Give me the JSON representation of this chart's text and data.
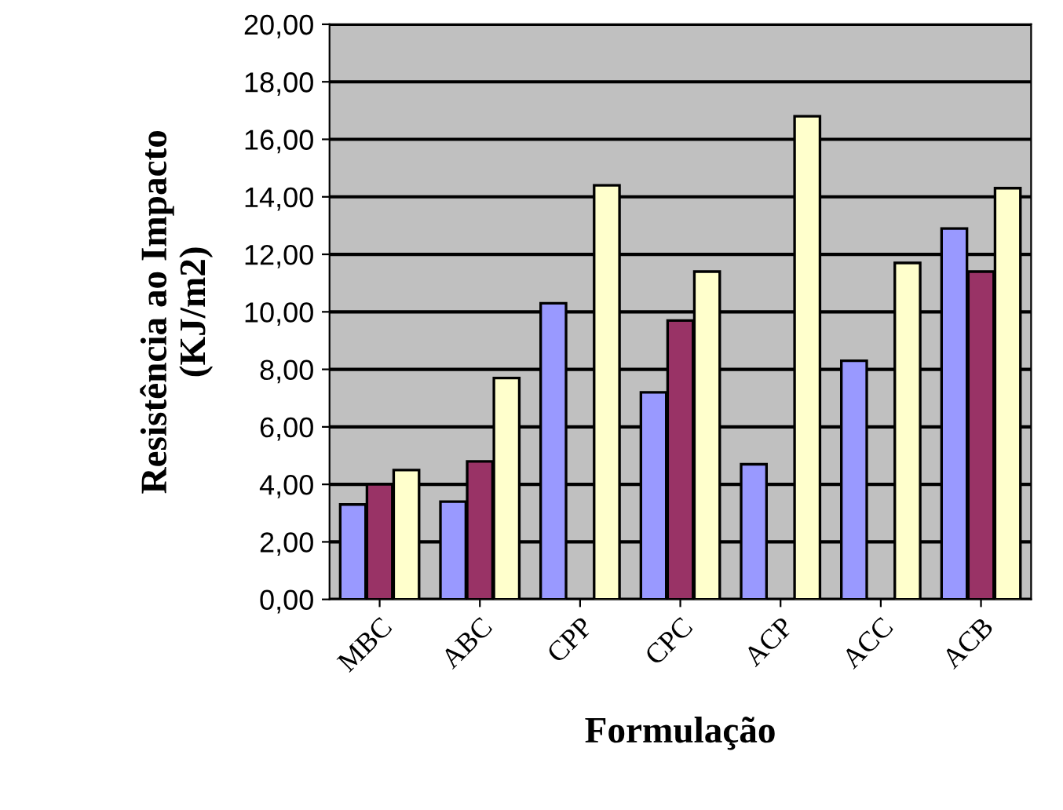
{
  "chart_data": {
    "type": "bar",
    "xlabel": "Formulação",
    "ylabel": "Resistência ao Impacto\n(KJ/m2)",
    "categories": [
      "MBC",
      "ABC",
      "CPP",
      "CPC",
      "ACP",
      "ACC",
      "ACB"
    ],
    "series": [
      {
        "color": "#9999ff",
        "values": [
          3.3,
          3.4,
          10.3,
          7.2,
          4.7,
          8.3,
          12.9
        ]
      },
      {
        "color": "#993366",
        "values": [
          4.0,
          4.8,
          null,
          9.7,
          null,
          null,
          11.4
        ]
      },
      {
        "color": "#ffffcc",
        "values": [
          4.5,
          7.7,
          14.4,
          11.4,
          16.8,
          11.7,
          14.3
        ]
      }
    ],
    "ylim": [
      0,
      20
    ],
    "yticks": [
      {
        "value": 0,
        "label": "0,00"
      },
      {
        "value": 2,
        "label": "2,00"
      },
      {
        "value": 4,
        "label": "4,00"
      },
      {
        "value": 6,
        "label": "6,00"
      },
      {
        "value": 8,
        "label": "8,00"
      },
      {
        "value": 10,
        "label": "10,00"
      },
      {
        "value": 12,
        "label": "12,00"
      },
      {
        "value": 14,
        "label": "14,00"
      },
      {
        "value": 16,
        "label": "16,00"
      },
      {
        "value": 18,
        "label": "18,00"
      },
      {
        "value": 20,
        "label": "20,00"
      }
    ],
    "grid": "y",
    "legend": false
  }
}
